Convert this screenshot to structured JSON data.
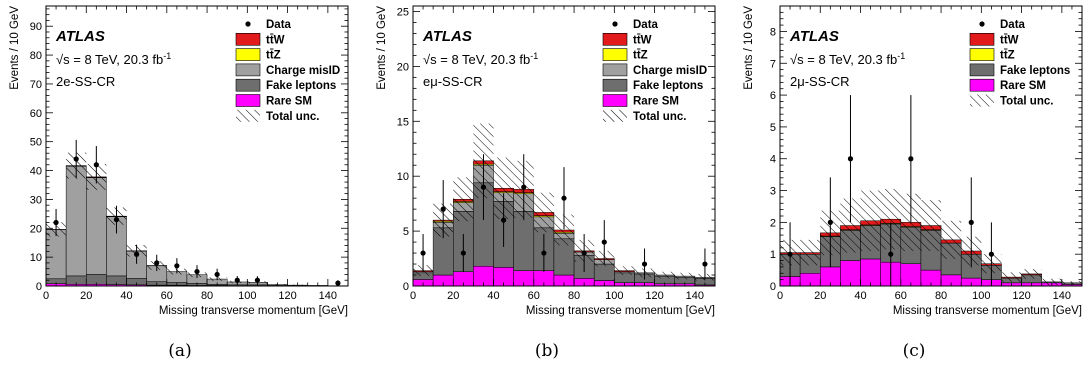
{
  "common": {
    "xlabel": "Missing transverse momentum [GeV]",
    "ylabel": "Events / 10 GeV",
    "atlas": "ATLAS",
    "energy": "√s = 8 TeV, 20.3 fb",
    "energy_sup": "-1",
    "legend_data": "Data",
    "legend_ttW": "tt̄W",
    "legend_ttZ": "tt̄Z",
    "legend_misid": "Charge misID",
    "legend_fake": "Fake leptons",
    "legend_rare": "Rare SM",
    "legend_unc": "Total unc.",
    "colors": {
      "ttW": "#e31a1c",
      "ttZ": "#ffff00",
      "misid": "#a0a0a0",
      "fake": "#6e6e6e",
      "rare": "#ff00ff"
    }
  },
  "labels": {
    "a": "(a)",
    "b": "(b)",
    "c": "(c)"
  },
  "chart_data": [
    {
      "type": "bar",
      "region": "2e-SS-CR",
      "xlim": [
        0,
        150
      ],
      "ylim": [
        0,
        97
      ],
      "xticks": [
        0,
        20,
        40,
        60,
        80,
        100,
        120,
        140
      ],
      "yticks": [
        0,
        10,
        20,
        30,
        40,
        50,
        60,
        70,
        80,
        90
      ],
      "bins": [
        0,
        10,
        20,
        30,
        40,
        50,
        60,
        70,
        80,
        90,
        100,
        110,
        120,
        130,
        140
      ],
      "stack": {
        "rare": [
          0.8,
          0.6,
          0.6,
          0.5,
          0.4,
          0.3,
          0.3,
          0.2,
          0.2,
          0.1,
          0.1,
          0.1,
          0,
          0,
          0
        ],
        "fake": [
          1.7,
          2.9,
          3.4,
          3.0,
          2.2,
          1.2,
          0.9,
          0.7,
          0.4,
          0.3,
          0.3,
          0.1,
          0.1,
          0.1,
          0
        ],
        "misid": [
          17,
          38,
          33.5,
          20.5,
          9.5,
          5.5,
          3.8,
          3.0,
          1.8,
          1.0,
          0.9,
          0.3,
          0.2,
          0.1,
          0.1
        ],
        "ttZ": [
          0,
          0.1,
          0.1,
          0.1,
          0,
          0,
          0,
          0,
          0,
          0,
          0,
          0,
          0,
          0,
          0
        ],
        "ttW": [
          0.1,
          0.1,
          0.2,
          0.1,
          0.1,
          0.1,
          0,
          0,
          0,
          0,
          0,
          0,
          0,
          0,
          0
        ]
      },
      "unc": [
        2.5,
        4.5,
        4.5,
        3.0,
        2.0,
        1.5,
        1.0,
        0.8,
        0.6,
        0.4,
        0.4,
        0.2,
        0.2,
        0.1,
        0.1
      ],
      "data_x": [
        5,
        15,
        25,
        35,
        45,
        55,
        65,
        75,
        85,
        95,
        105,
        145
      ],
      "data_y": [
        22,
        44,
        42,
        23,
        11,
        8,
        7,
        5,
        4,
        2,
        2,
        1
      ]
    },
    {
      "type": "bar",
      "region": "eμ-SS-CR",
      "xlim": [
        0,
        150
      ],
      "ylim": [
        0,
        25.5
      ],
      "xticks": [
        0,
        20,
        40,
        60,
        80,
        100,
        120,
        140
      ],
      "yticks": [
        0,
        5,
        10,
        15,
        20,
        25
      ],
      "bins": [
        0,
        10,
        20,
        30,
        40,
        50,
        60,
        70,
        80,
        90,
        100,
        110,
        120,
        130,
        140
      ],
      "stack": {
        "rare": [
          0.6,
          1.0,
          1.3,
          1.8,
          1.7,
          1.4,
          1.4,
          1.0,
          0.7,
          0.5,
          0.3,
          0.3,
          0.2,
          0.2,
          0.1
        ],
        "fake": [
          0.6,
          4.3,
          5.5,
          7.6,
          6.0,
          5.4,
          3.9,
          3.3,
          2.1,
          1.5,
          0.9,
          0.8,
          0.7,
          0.6,
          0.6
        ],
        "misid": [
          0.1,
          0.5,
          0.8,
          1.6,
          0.8,
          1.6,
          1.0,
          0.5,
          0.3,
          0.4,
          0.1,
          0.1,
          0.1,
          0.1,
          0.1
        ],
        "ttZ": [
          0,
          0.1,
          0.1,
          0.1,
          0.1,
          0.1,
          0.1,
          0.1,
          0,
          0,
          0,
          0,
          0,
          0,
          0
        ],
        "ttW": [
          0.1,
          0.1,
          0.2,
          0.3,
          0.3,
          0.3,
          0.3,
          0.2,
          0.1,
          0.1,
          0.1,
          0,
          0,
          0,
          0
        ]
      },
      "unc": [
        0.5,
        1.5,
        2.0,
        3.4,
        2.8,
        2.6,
        1.8,
        1.4,
        1.0,
        0.7,
        0.4,
        0.4,
        0.3,
        0.3,
        0.3
      ],
      "data_x": [
        5,
        15,
        25,
        35,
        45,
        55,
        65,
        75,
        85,
        95,
        115,
        145
      ],
      "data_y": [
        3,
        7,
        3,
        9,
        6,
        9,
        3,
        8,
        3,
        4,
        2,
        2
      ]
    },
    {
      "type": "bar",
      "region": "2μ-SS-CR",
      "xlim": [
        0,
        150
      ],
      "ylim": [
        0,
        8.8
      ],
      "xticks": [
        0,
        20,
        40,
        60,
        80,
        100,
        120,
        140
      ],
      "yticks": [
        0,
        1,
        2,
        3,
        4,
        5,
        6,
        7,
        8
      ],
      "bins": [
        0,
        10,
        20,
        30,
        40,
        50,
        60,
        70,
        80,
        90,
        100,
        110,
        120,
        130,
        140
      ],
      "stack": {
        "rare": [
          0.3,
          0.4,
          0.6,
          0.8,
          0.85,
          0.75,
          0.7,
          0.5,
          0.35,
          0.25,
          0.2,
          0.1,
          0.1,
          0.1,
          0.05
        ],
        "fake": [
          0.7,
          0.6,
          0.95,
          0.95,
          1.05,
          1.2,
          1.15,
          1.25,
          1.0,
          0.75,
          0.45,
          0.15,
          0.25,
          0.03,
          0.05
        ],
        "ttZ": [
          0,
          0,
          0.02,
          0.02,
          0.02,
          0.02,
          0.02,
          0.02,
          0,
          0,
          0,
          0,
          0,
          0,
          0
        ],
        "ttW": [
          0.05,
          0.05,
          0.1,
          0.13,
          0.13,
          0.13,
          0.13,
          0.13,
          0.1,
          0.1,
          0.05,
          0.03,
          0.03,
          0,
          0
        ]
      },
      "unc": [
        0.4,
        0.4,
        0.7,
        0.85,
        0.95,
        0.95,
        0.9,
        0.8,
        0.6,
        0.45,
        0.3,
        0.15,
        0.15,
        0.1,
        0.05
      ],
      "data_x": [
        5,
        25,
        35,
        55,
        65,
        95,
        105
      ],
      "data_y": [
        1,
        2,
        4,
        1,
        4,
        2,
        1
      ]
    }
  ]
}
